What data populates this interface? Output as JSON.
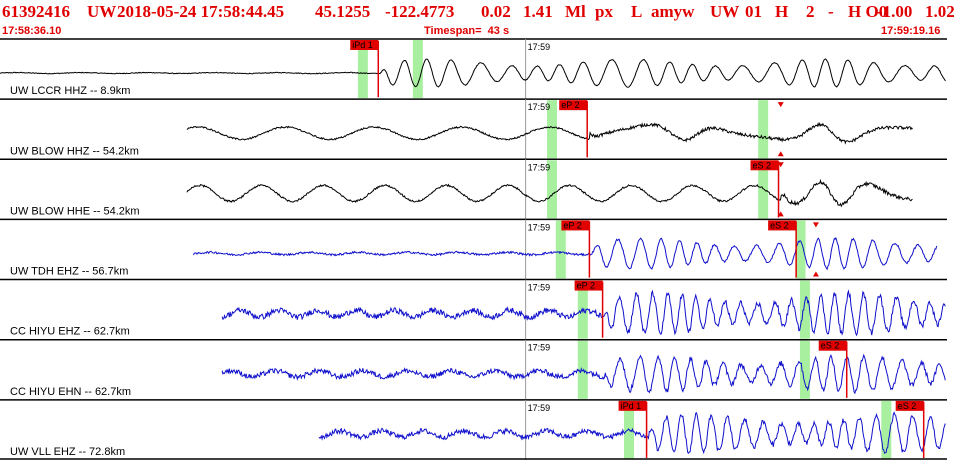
{
  "header": {
    "event_id": "61392416",
    "network": "UW",
    "datetime": "2018-05-24 17:58:44.45",
    "lat": "45.1255",
    "lon": "-122.4773",
    "depth": "0.02",
    "magnitude": "1.41",
    "mag_type": "Ml",
    "event_type": "px",
    "type_flag": "L",
    "analyst": "amyw",
    "station_net": "UW",
    "station_id": "01",
    "flag_h": "H",
    "flag_2": "2",
    "flag_dash": "-",
    "flag_ho": "H O0",
    "val_a": "-1.00",
    "val_b": "1.02",
    "start_time": "17:58:36.10",
    "timespan": "Timespan=  43 s",
    "end_time": "17:59:19.16"
  },
  "colors": {
    "header_text": "#e00000",
    "pick_flag": "#e00000",
    "window_green": "#a8f0a0",
    "trace_black": "#000000",
    "trace_blue": "#1010cc"
  },
  "traces": [
    {
      "label": "UW LCCR HHZ -- 8.9km",
      "color": "black",
      "minute_mark": "17:59",
      "picks": [
        {
          "text": "iPd 1",
          "time": 17.2
        }
      ],
      "windows": [
        16.5,
        19.0
      ],
      "start": 0.0,
      "end": 43.0,
      "onset": 17.3,
      "amp": 0.55,
      "period": 1.2,
      "noise": 0.03
    },
    {
      "label": "UW BLOW HHZ -- 54.2km",
      "color": "black",
      "minute_mark": "17:59",
      "picks": [
        {
          "text": "eP 2",
          "time": 26.7
        }
      ],
      "windows": [
        25.1,
        34.7
      ],
      "start": 8.5,
      "end": 41.5,
      "onset": 26.8,
      "amp": 0.35,
      "period": 4.0,
      "noise": 0.12,
      "marker_time": 35.5
    },
    {
      "label": "UW BLOW HHE -- 54.2km",
      "color": "black",
      "minute_mark": "17:59",
      "picks": [
        {
          "text": "eS 2",
          "time": 35.4
        }
      ],
      "windows": [
        25.1,
        34.7
      ],
      "start": 8.5,
      "end": 41.5,
      "onset": 35.5,
      "amp": 0.45,
      "period": 2.8,
      "noise": 0.14,
      "marker_time": 35.5
    },
    {
      "label": "UW TDH EHZ -- 56.7km",
      "color": "blue",
      "minute_mark": "17:59",
      "picks": [
        {
          "text": "eP 2",
          "time": 26.8
        },
        {
          "text": "eS 2",
          "time": 36.2
        }
      ],
      "windows": [
        25.5,
        36.4
      ],
      "start": 8.8,
      "end": 42.6,
      "onset": 26.9,
      "amp": 0.6,
      "period": 0.9,
      "noise": 0.08,
      "marker_time": 37.1
    },
    {
      "label": "CC HIYU EHZ -- 62.7km",
      "color": "blue",
      "minute_mark": "17:59",
      "picks": [
        {
          "text": "eP 2",
          "time": 27.4
        }
      ],
      "windows": [
        26.5,
        36.6
      ],
      "start": 10.1,
      "end": 43.0,
      "onset": 27.5,
      "amp": 0.8,
      "period": 0.7,
      "noise": 0.22
    },
    {
      "label": "CC HIYU EHN -- 62.7km",
      "color": "blue",
      "minute_mark": "17:59",
      "picks": [
        {
          "text": "eS 2",
          "time": 38.5
        }
      ],
      "windows": [
        26.5,
        36.6
      ],
      "start": 10.1,
      "end": 43.0,
      "onset": 27.5,
      "amp": 0.7,
      "period": 0.8,
      "noise": 0.2
    },
    {
      "label": "UW VLL EHZ -- 72.8km",
      "color": "blue",
      "minute_mark": "17:59",
      "picks": [
        {
          "text": "iPd 1",
          "time": 29.4
        },
        {
          "text": "eS 2",
          "time": 42.0
        }
      ],
      "windows": [
        28.6,
        40.3
      ],
      "start": 14.5,
      "end": 43.0,
      "onset": 29.5,
      "amp": 0.75,
      "period": 0.75,
      "noise": 0.2
    }
  ]
}
